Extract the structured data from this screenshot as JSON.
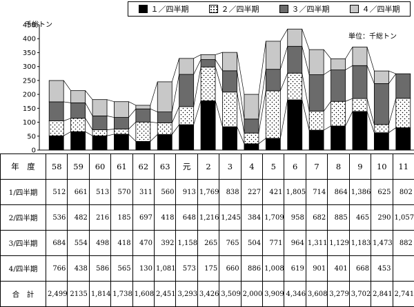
{
  "legend": [
    "１／四半期",
    "２／四半期",
    "３／四半期",
    "４／四半期"
  ],
  "y_unit": "千総トン",
  "unit_note": "単位：千総トン",
  "colors": {
    "q1": "#000000",
    "q2": "#ffffff",
    "q3": "#6b6b6b",
    "q4": "#c8c8c8"
  },
  "table": {
    "header_label": "年　度",
    "row_labels": [
      "1/四半期",
      "2/四半期",
      "3/四半期",
      "4/四半期",
      "合　計"
    ],
    "years": [
      "58",
      "59",
      "60",
      "61",
      "62",
      "63",
      "元",
      "2",
      "3",
      "4",
      "5",
      "6",
      "7",
      "8",
      "9",
      "10",
      "11"
    ],
    "rows": [
      [
        "512",
        "661",
        "513",
        "570",
        "311",
        "560",
        "913",
        "1,769",
        "838",
        "227",
        "421",
        "1,805",
        "714",
        "864",
        "1,386",
        "625",
        "802"
      ],
      [
        "536",
        "482",
        "216",
        "185",
        "697",
        "418",
        "648",
        "1,216",
        "1,245",
        "384",
        "1,709",
        "958",
        "682",
        "885",
        "465",
        "290",
        "1,057"
      ],
      [
        "684",
        "554",
        "498",
        "418",
        "470",
        "392",
        "1,158",
        "265",
        "765",
        "504",
        "771",
        "964",
        "1,311",
        "1,129",
        "1,183",
        "1,473",
        "882"
      ],
      [
        "766",
        "438",
        "586",
        "565",
        "130",
        "1,081",
        "573",
        "175",
        "660",
        "886",
        "1,008",
        "619",
        "901",
        "401",
        "668",
        "453",
        ""
      ],
      [
        "2,499",
        "2135",
        "1,814",
        "1,738",
        "1,608",
        "2,451",
        "3,293",
        "3,426",
        "3,509",
        "2,000",
        "3,909",
        "4,346",
        "3,608",
        "3,279",
        "3,702",
        "2,841",
        "2,741"
      ]
    ]
  },
  "chart_data": {
    "type": "bar",
    "stacked": true,
    "categories": [
      "58",
      "59",
      "60",
      "61",
      "62",
      "63",
      "元",
      "2",
      "3",
      "4",
      "5",
      "6",
      "7",
      "8",
      "9",
      "10",
      "11"
    ],
    "series": [
      {
        "name": "１／四半期",
        "values": [
          512,
          661,
          513,
          570,
          311,
          560,
          913,
          1769,
          838,
          227,
          421,
          1805,
          714,
          864,
          1386,
          625,
          802
        ]
      },
      {
        "name": "２／四半期",
        "values": [
          536,
          482,
          216,
          185,
          697,
          418,
          648,
          1216,
          1245,
          384,
          1709,
          958,
          682,
          885,
          465,
          290,
          1057
        ]
      },
      {
        "name": "３／四半期",
        "values": [
          684,
          554,
          498,
          418,
          470,
          392,
          1158,
          265,
          765,
          504,
          771,
          964,
          1311,
          1129,
          1183,
          1473,
          882
        ]
      },
      {
        "name": "４／四半期",
        "values": [
          766,
          438,
          586,
          565,
          130,
          1081,
          573,
          175,
          660,
          886,
          1008,
          619,
          901,
          401,
          668,
          453,
          0
        ]
      }
    ],
    "ylabel": "千総トン",
    "yticks": [
      "0",
      "50",
      "100",
      "150",
      "200",
      "250",
      "300",
      "350",
      "400",
      "450"
    ],
    "ylim": [
      0,
      4500
    ],
    "legend_position": "top"
  }
}
